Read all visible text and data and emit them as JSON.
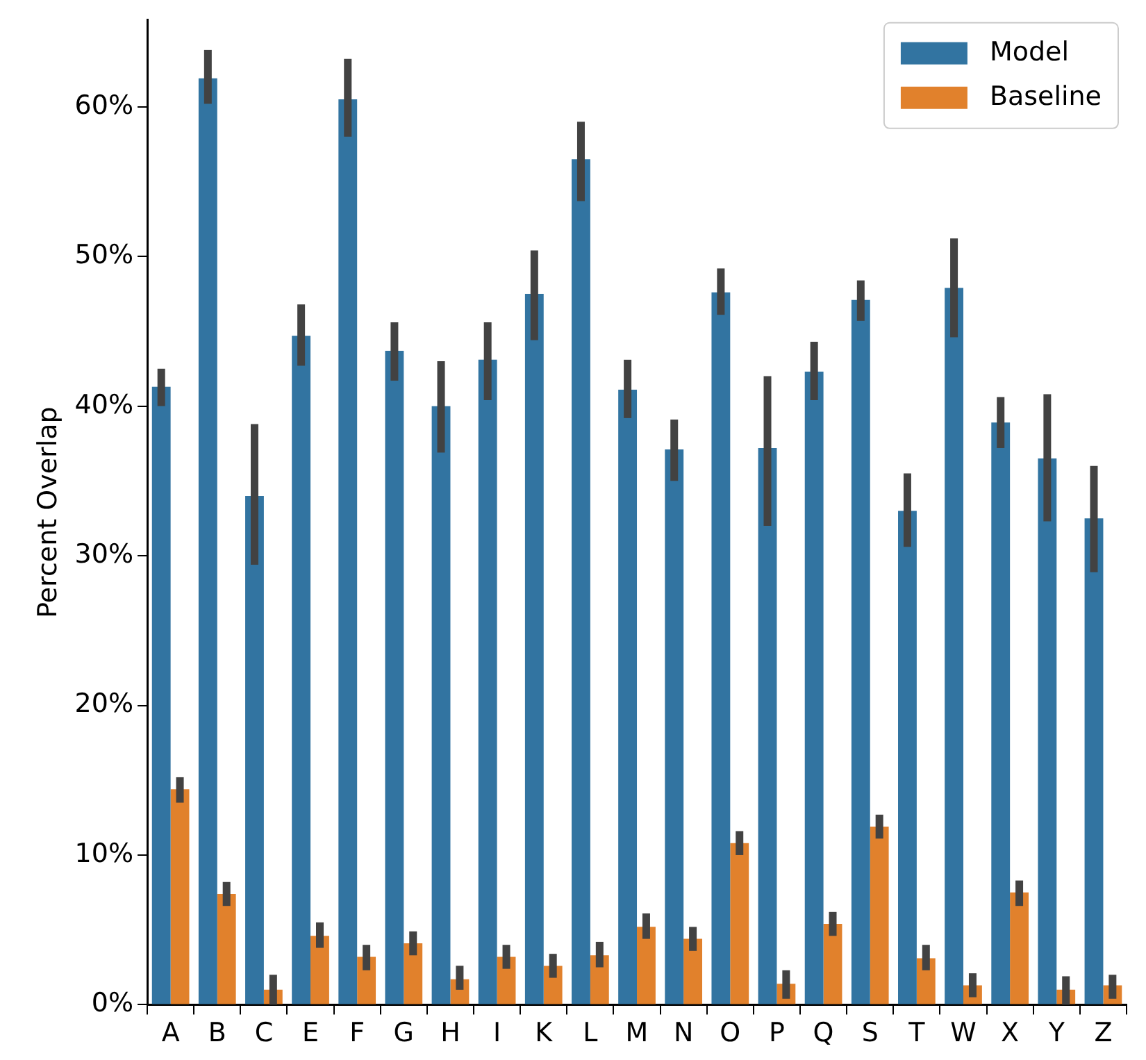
{
  "chart_data": {
    "type": "bar",
    "ylabel": "Percent Overlap",
    "categories": [
      "A",
      "B",
      "C",
      "E",
      "F",
      "G",
      "H",
      "I",
      "K",
      "L",
      "M",
      "N",
      "O",
      "P",
      "Q",
      "S",
      "T",
      "W",
      "X",
      "Y",
      "Z"
    ],
    "series": [
      {
        "name": "Model",
        "color": "#3274a1",
        "values": [
          41.3,
          61.9,
          34.0,
          44.7,
          60.5,
          43.7,
          40.0,
          43.1,
          47.5,
          56.5,
          41.1,
          37.1,
          47.6,
          37.2,
          42.3,
          47.1,
          33.0,
          47.9,
          38.9,
          36.5,
          32.5
        ],
        "errors": [
          [
            40.0,
            42.5
          ],
          [
            60.2,
            63.8
          ],
          [
            29.4,
            38.8
          ],
          [
            42.7,
            46.8
          ],
          [
            58.0,
            63.2
          ],
          [
            41.7,
            45.6
          ],
          [
            36.9,
            43.0
          ],
          [
            40.4,
            45.6
          ],
          [
            44.4,
            50.4
          ],
          [
            53.7,
            59.0
          ],
          [
            39.2,
            43.1
          ],
          [
            35.0,
            39.1
          ],
          [
            46.1,
            49.2
          ],
          [
            32.0,
            42.0
          ],
          [
            40.4,
            44.3
          ],
          [
            45.7,
            48.4
          ],
          [
            30.6,
            35.5
          ],
          [
            44.6,
            51.2
          ],
          [
            37.2,
            40.6
          ],
          [
            32.3,
            40.8
          ],
          [
            28.9,
            36.0
          ]
        ]
      },
      {
        "name": "Baseline",
        "color": "#e1812c",
        "values": [
          14.4,
          7.4,
          1.0,
          4.6,
          3.2,
          4.1,
          1.7,
          3.2,
          2.6,
          3.3,
          5.2,
          4.4,
          10.8,
          1.4,
          5.4,
          11.9,
          3.1,
          1.3,
          7.5,
          1.0,
          1.3
        ],
        "errors": [
          [
            13.5,
            15.2
          ],
          [
            6.6,
            8.2
          ],
          [
            0.0,
            2.0
          ],
          [
            3.8,
            5.5
          ],
          [
            2.3,
            4.0
          ],
          [
            3.3,
            4.9
          ],
          [
            1.0,
            2.6
          ],
          [
            2.4,
            4.0
          ],
          [
            1.8,
            3.4
          ],
          [
            2.5,
            4.2
          ],
          [
            4.4,
            6.1
          ],
          [
            3.6,
            5.2
          ],
          [
            10.0,
            11.6
          ],
          [
            0.4,
            2.3
          ],
          [
            4.6,
            6.2
          ],
          [
            11.1,
            12.7
          ],
          [
            2.3,
            4.0
          ],
          [
            0.5,
            2.1
          ],
          [
            6.6,
            8.3
          ],
          [
            0.0,
            1.9
          ],
          [
            0.4,
            2.0
          ]
        ]
      }
    ],
    "ylim": [
      0,
      65.8
    ],
    "yticks": [
      {
        "value": 0,
        "label": "0%"
      },
      {
        "value": 10,
        "label": "10%"
      },
      {
        "value": 20,
        "label": "20%"
      },
      {
        "value": 30,
        "label": "30%"
      },
      {
        "value": 40,
        "label": "40%"
      },
      {
        "value": 50,
        "label": "50%"
      },
      {
        "value": 60,
        "label": "60%"
      }
    ],
    "grid": false,
    "legend": "top right"
  }
}
